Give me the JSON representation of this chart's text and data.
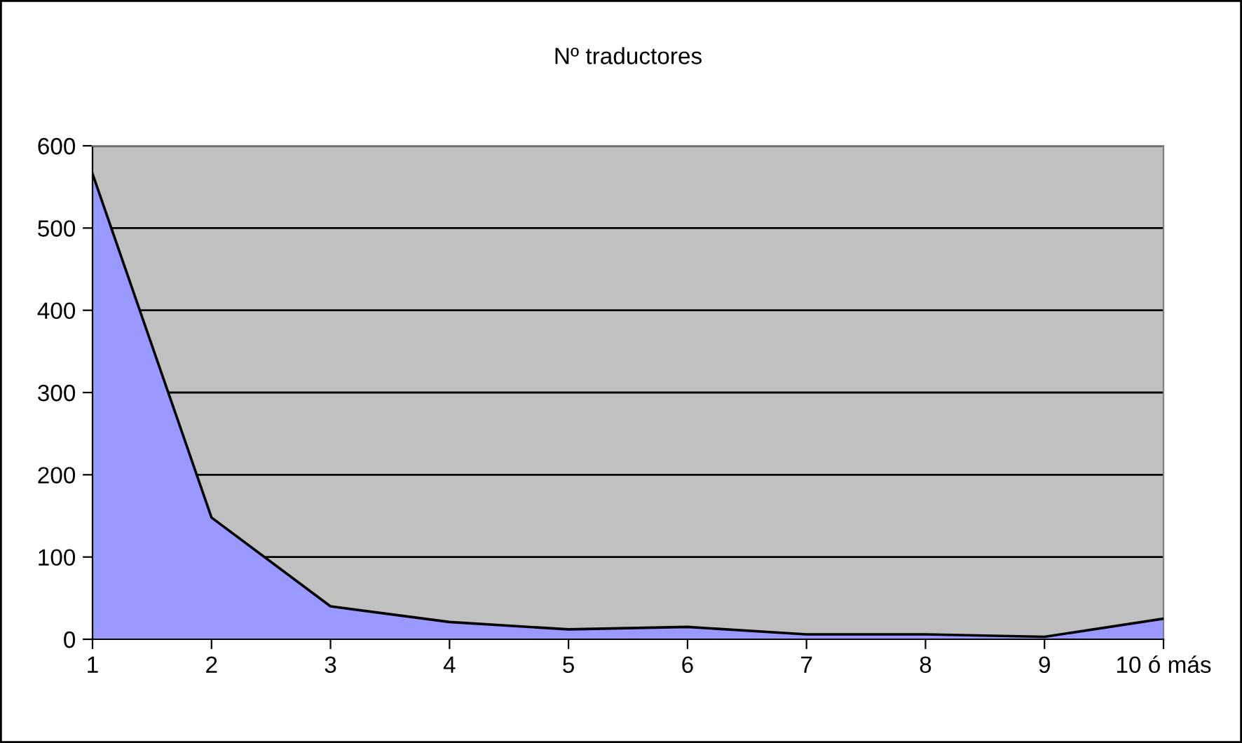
{
  "chart_data": {
    "type": "area",
    "title": "Nº traductores",
    "categories": [
      "1",
      "2",
      "3",
      "4",
      "5",
      "6",
      "7",
      "8",
      "9",
      "10 ó más"
    ],
    "series": [
      {
        "color": "#9999ff",
        "values": [
          566,
          148,
          40,
          21,
          12,
          15,
          6,
          6,
          3,
          25
        ]
      }
    ],
    "ylim": [
      0,
      600
    ],
    "yticks": [
      0,
      100,
      200,
      300,
      400,
      500,
      600
    ],
    "grid": "y",
    "legend": false
  }
}
